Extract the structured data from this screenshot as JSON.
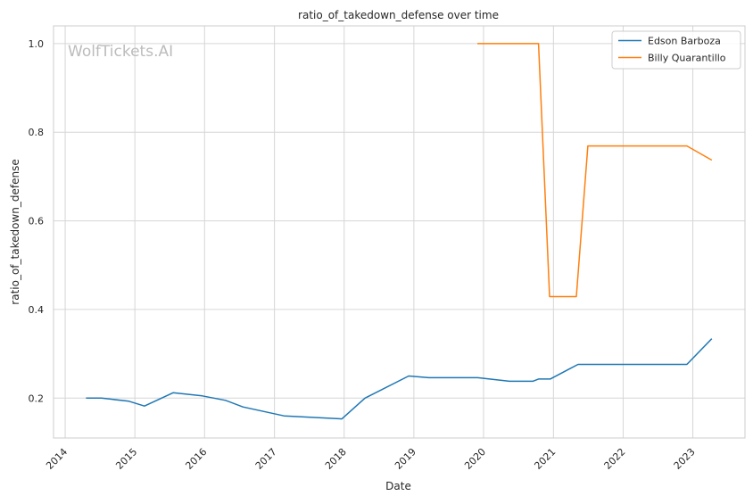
{
  "watermark": "WolfTickets.AI",
  "chart_data": {
    "type": "line",
    "title": "ratio_of_takedown_defense over time",
    "xlabel": "Date",
    "ylabel": "ratio_of_takedown_defense",
    "xlim": [
      "2013-11-01",
      "2023-10-01"
    ],
    "ylim": [
      0.11,
      1.04
    ],
    "x_ticks": [
      "2014",
      "2015",
      "2016",
      "2017",
      "2018",
      "2019",
      "2020",
      "2021",
      "2022",
      "2023"
    ],
    "y_ticks": [
      0.2,
      0.4,
      0.6,
      0.8,
      1.0
    ],
    "y_tick_labels": [
      "0.2",
      "0.4",
      "0.6",
      "0.8",
      "1.0"
    ],
    "grid": true,
    "legend_position": "top-right",
    "series": [
      {
        "name": "Edson Barboza",
        "color": "#1f77b4",
        "points": [
          {
            "x": "2014-04-20",
            "y": 0.2
          },
          {
            "x": "2014-07-10",
            "y": 0.2
          },
          {
            "x": "2014-12-01",
            "y": 0.193
          },
          {
            "x": "2015-02-20",
            "y": 0.182
          },
          {
            "x": "2015-07-20",
            "y": 0.212
          },
          {
            "x": "2015-12-20",
            "y": 0.205
          },
          {
            "x": "2016-04-20",
            "y": 0.195
          },
          {
            "x": "2016-07-20",
            "y": 0.18
          },
          {
            "x": "2017-02-20",
            "y": 0.16
          },
          {
            "x": "2017-12-20",
            "y": 0.153
          },
          {
            "x": "2018-04-20",
            "y": 0.2
          },
          {
            "x": "2018-12-05",
            "y": 0.25
          },
          {
            "x": "2019-03-20",
            "y": 0.246
          },
          {
            "x": "2019-12-01",
            "y": 0.246
          },
          {
            "x": "2020-05-15",
            "y": 0.238
          },
          {
            "x": "2020-09-15",
            "y": 0.238
          },
          {
            "x": "2020-10-15",
            "y": 0.243
          },
          {
            "x": "2020-12-15",
            "y": 0.243
          },
          {
            "x": "2021-05-10",
            "y": 0.276
          },
          {
            "x": "2021-12-15",
            "y": 0.276
          },
          {
            "x": "2022-12-01",
            "y": 0.276
          },
          {
            "x": "2023-04-10",
            "y": 0.334
          }
        ]
      },
      {
        "name": "Billy Quarantillo",
        "color": "#ff7f0e",
        "points": [
          {
            "x": "2019-11-30",
            "y": 1.0
          },
          {
            "x": "2020-10-15",
            "y": 1.0
          },
          {
            "x": "2020-12-12",
            "y": 0.429
          },
          {
            "x": "2021-05-01",
            "y": 0.429
          },
          {
            "x": "2021-06-30",
            "y": 0.769
          },
          {
            "x": "2022-12-01",
            "y": 0.769
          },
          {
            "x": "2023-04-10",
            "y": 0.737
          }
        ]
      }
    ]
  }
}
